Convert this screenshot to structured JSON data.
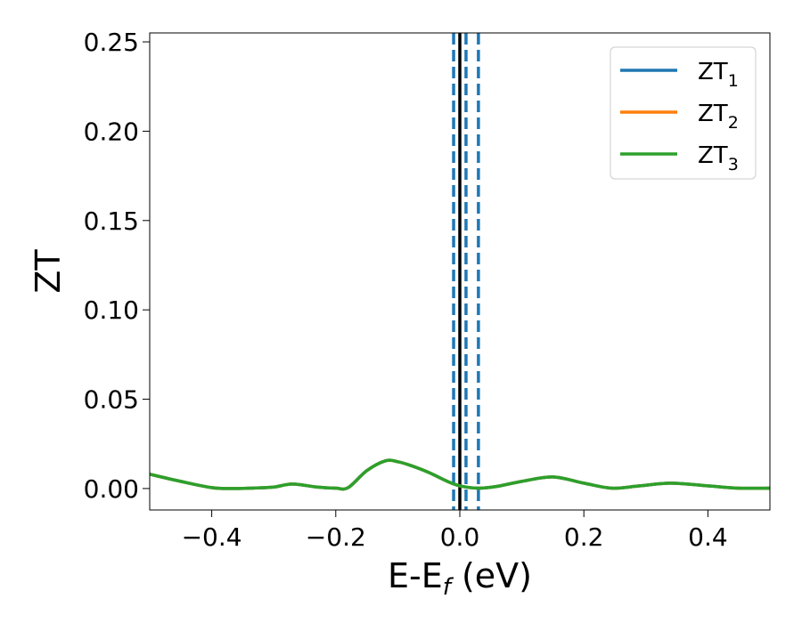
{
  "chart_data": {
    "type": "line",
    "xlabel": "E-E",
    "xlabel_sub": "f",
    "xlabel_unit": " (eV)",
    "ylabel": "ZT",
    "xlim": [
      -0.5,
      0.5
    ],
    "ylim": [
      -0.012,
      0.255
    ],
    "x_ticks": [
      -0.4,
      -0.2,
      0.0,
      0.2,
      0.4
    ],
    "x_tick_labels": [
      "−0.4",
      "−0.2",
      "0.0",
      "0.2",
      "0.4"
    ],
    "y_ticks": [
      0.0,
      0.05,
      0.1,
      0.15,
      0.2,
      0.25
    ],
    "y_tick_labels": [
      "0.00",
      "0.05",
      "0.10",
      "0.15",
      "0.20",
      "0.25"
    ],
    "grid": false,
    "legend_position": "top-right",
    "x": [
      -0.5,
      -0.45,
      -0.4,
      -0.37,
      -0.33,
      -0.3,
      -0.27,
      -0.23,
      -0.2,
      -0.18,
      -0.15,
      -0.12,
      -0.1,
      -0.08,
      -0.05,
      -0.02,
      0.0,
      0.03,
      0.06,
      0.1,
      0.15,
      0.2,
      0.245,
      0.29,
      0.34,
      0.4,
      0.45,
      0.5
    ],
    "series": [
      {
        "name": "ZT",
        "name_sub": "1",
        "color": "#1f77b4",
        "values": [
          0.008,
          0.004,
          0.0005,
          0.0,
          0.0003,
          0.0008,
          0.0025,
          0.0008,
          0.0002,
          0.0005,
          0.01,
          0.0155,
          0.015,
          0.013,
          0.009,
          0.004,
          0.0015,
          0.0002,
          0.0012,
          0.004,
          0.0065,
          0.003,
          0.0002,
          0.0015,
          0.003,
          0.0015,
          0.0002,
          0.0002
        ]
      },
      {
        "name": "ZT",
        "name_sub": "2",
        "color": "#ff7f0e",
        "values": [
          0.008,
          0.004,
          0.0005,
          0.0,
          0.0003,
          0.0008,
          0.0025,
          0.0008,
          0.0002,
          0.0005,
          0.01,
          0.0155,
          0.015,
          0.013,
          0.009,
          0.004,
          0.0015,
          0.0002,
          0.0012,
          0.004,
          0.0065,
          0.003,
          0.0002,
          0.0015,
          0.003,
          0.0015,
          0.0002,
          0.0002
        ]
      },
      {
        "name": "ZT",
        "name_sub": "3",
        "color": "#2ca02c",
        "values": [
          0.008,
          0.004,
          0.0005,
          0.0,
          0.0003,
          0.0008,
          0.0025,
          0.0008,
          0.0002,
          0.0005,
          0.01,
          0.0155,
          0.015,
          0.013,
          0.009,
          0.004,
          0.0015,
          0.0002,
          0.0012,
          0.004,
          0.0065,
          0.003,
          0.0002,
          0.0015,
          0.003,
          0.0015,
          0.0002,
          0.0002
        ]
      }
    ],
    "vlines": [
      {
        "x": 0.0,
        "style": "solid",
        "color": "#000000"
      },
      {
        "x": -0.01,
        "style": "dashed",
        "color": "#1f77b4"
      },
      {
        "x": 0.01,
        "style": "dashed",
        "color": "#1f77b4"
      },
      {
        "x": 0.03,
        "style": "dashed",
        "color": "#1f77b4"
      }
    ]
  }
}
